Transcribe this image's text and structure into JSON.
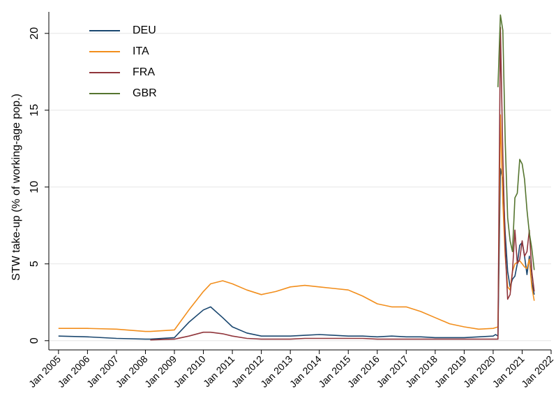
{
  "chart_data": {
    "type": "line",
    "y_label": "STW take-up (% of working-age pop.)",
    "x": [
      "2005-01",
      "2006-01",
      "2007-01",
      "2008-01",
      "2008-03",
      "2009-01",
      "2009-07",
      "2010-01",
      "2010-04",
      "2010-09",
      "2011-01",
      "2011-07",
      "2012-01",
      "2012-07",
      "2013-01",
      "2013-07",
      "2014-01",
      "2014-07",
      "2015-01",
      "2015-07",
      "2016-01",
      "2016-07",
      "2017-01",
      "2017-07",
      "2018-01",
      "2018-07",
      "2019-01",
      "2019-07",
      "2020-01",
      "2020-02",
      "2020-03",
      "2020-04",
      "2020-05",
      "2020-06",
      "2020-07",
      "2020-08",
      "2020-09",
      "2020-10",
      "2020-11",
      "2020-12",
      "2021-01",
      "2021-02",
      "2021-03",
      "2021-04",
      "2021-05",
      "2021-06"
    ],
    "series": [
      {
        "name": "DEU",
        "color": "#1a476f",
        "values": [
          0.3,
          0.25,
          0.15,
          0.1,
          0.1,
          0.2,
          1.2,
          2.0,
          2.2,
          1.5,
          0.9,
          0.5,
          0.3,
          0.3,
          0.3,
          0.35,
          0.4,
          0.35,
          0.3,
          0.3,
          0.25,
          0.3,
          0.25,
          0.25,
          0.2,
          0.2,
          0.2,
          0.25,
          0.3,
          0.4,
          0.3,
          11.2,
          10.5,
          7,
          4.5,
          3.5,
          4,
          4.2,
          5,
          6.2,
          6.4,
          5.5,
          4.3,
          5.5,
          3.8,
          3
        ]
      },
      {
        "name": "ITA",
        "color": "#f28e1c",
        "values": [
          0.8,
          0.8,
          0.75,
          0.6,
          0.6,
          0.7,
          2.0,
          3.2,
          3.7,
          3.9,
          3.7,
          3.3,
          3.0,
          3.2,
          3.5,
          3.6,
          3.5,
          3.4,
          3.3,
          2.9,
          2.4,
          2.2,
          2.2,
          1.9,
          1.5,
          1.1,
          0.9,
          0.75,
          0.8,
          0.85,
          0.9,
          14.7,
          9,
          5.5,
          3.5,
          3.3,
          4.5,
          5,
          5.1,
          5.2,
          5,
          4.8,
          4.7,
          5.3,
          3.5,
          2.6
        ]
      },
      {
        "name": "FRA",
        "color": "#90353b",
        "values": [
          null,
          null,
          null,
          null,
          0.05,
          0.1,
          0.3,
          0.55,
          0.55,
          0.45,
          0.3,
          0.15,
          0.1,
          0.1,
          0.1,
          0.15,
          0.15,
          0.15,
          0.15,
          0.15,
          0.1,
          0.1,
          0.1,
          0.1,
          0.1,
          0.1,
          0.1,
          0.1,
          0.1,
          0.1,
          0.1,
          20.4,
          12,
          6,
          2.7,
          3,
          4.5,
          7.2,
          5,
          5.3,
          6.5,
          5.5,
          5.8,
          7.2,
          4.5,
          3.2
        ]
      },
      {
        "name": "GBR",
        "color": "#55752f",
        "values": [
          null,
          null,
          null,
          null,
          null,
          null,
          null,
          null,
          null,
          null,
          null,
          null,
          null,
          null,
          null,
          null,
          null,
          null,
          null,
          null,
          null,
          null,
          null,
          null,
          null,
          null,
          null,
          null,
          null,
          null,
          16.5,
          21.2,
          20.2,
          13,
          8,
          6.5,
          5.8,
          9.3,
          9.6,
          11.8,
          11.5,
          10.5,
          8.5,
          7,
          6,
          4.6
        ]
      }
    ],
    "xlim": [
      "2004-09",
      "2022-01"
    ],
    "xticks": [
      {
        "value": "2005-01",
        "label": "Jan 2005"
      },
      {
        "value": "2006-01",
        "label": "Jan 2006"
      },
      {
        "value": "2007-01",
        "label": "Jan 2007"
      },
      {
        "value": "2008-01",
        "label": "Jan 2008"
      },
      {
        "value": "2009-01",
        "label": "Jan 2009"
      },
      {
        "value": "2010-01",
        "label": "Jan 2010"
      },
      {
        "value": "2011-01",
        "label": "Jan 2011"
      },
      {
        "value": "2012-01",
        "label": "Jan 2012"
      },
      {
        "value": "2013-01",
        "label": "Jan 2013"
      },
      {
        "value": "2014-01",
        "label": "Jan 2014"
      },
      {
        "value": "2015-01",
        "label": "Jan 2015"
      },
      {
        "value": "2016-01",
        "label": "Jan 2016"
      },
      {
        "value": "2017-01",
        "label": "Jan 2017"
      },
      {
        "value": "2018-01",
        "label": "Jan 2018"
      },
      {
        "value": "2019-01",
        "label": "Jan 2019"
      },
      {
        "value": "2020-01",
        "label": "Jan 2020"
      },
      {
        "value": "2021-01",
        "label": "Jan 2021"
      },
      {
        "value": "2022-01",
        "label": "Jan 2022"
      }
    ],
    "ylim": [
      -0.6,
      21.4
    ],
    "yticks": [
      0,
      5,
      10,
      15,
      20
    ],
    "grid": true,
    "legend": "upper-left"
  }
}
